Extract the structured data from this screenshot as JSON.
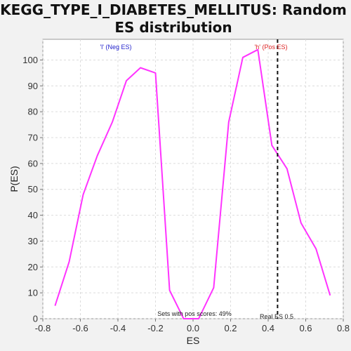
{
  "chart_data": {
    "type": "line",
    "title_line1": "KEGG_TYPE_I_DIABETES_MELLITUS: Random",
    "title_line2": "ES distribution",
    "xlabel": "ES",
    "ylabel": "P(ES)",
    "xlim": [
      -0.8,
      0.8
    ],
    "ylim": [
      0,
      108
    ],
    "x_ticks": [
      -0.8,
      -0.6,
      -0.4,
      -0.2,
      0.0,
      0.2,
      0.4,
      0.6,
      0.8
    ],
    "x_tick_labels": [
      "-0.8",
      "-0.6",
      "-0.4",
      "-0.2",
      "0.0",
      "0.2",
      "0.4",
      "0.6",
      "0.8"
    ],
    "y_ticks": [
      0,
      10,
      20,
      30,
      40,
      50,
      60,
      70,
      80,
      90,
      100
    ],
    "y_tick_labels": [
      "0",
      "10",
      "20",
      "30",
      "40",
      "50",
      "60",
      "70",
      "80",
      "90",
      "100"
    ],
    "grid": true,
    "series": [
      {
        "color": "#ff33ff",
        "x": [
          -0.735,
          -0.66,
          -0.585,
          -0.51,
          -0.43,
          -0.355,
          -0.28,
          -0.2,
          -0.125,
          -0.05,
          0.03,
          0.11,
          0.19,
          0.265,
          0.345,
          0.42,
          0.5,
          0.575,
          0.655,
          0.73
        ],
        "y": [
          5,
          22,
          48,
          63,
          76,
          92,
          97,
          95,
          11,
          0,
          0,
          12,
          76,
          101,
          104,
          67,
          58,
          37,
          27,
          9
        ]
      }
    ],
    "real_es": {
      "value": 0.45,
      "label": "Real ES 0.5",
      "color": "#111111"
    },
    "annotations": {
      "neg_label": "'l' (Neg ES)",
      "neg_color": "#2222cc",
      "pos_label": "'h' (Pos ES)",
      "pos_color": "#dd2222",
      "sets_text": "Sets with pos scores: 49%"
    }
  }
}
